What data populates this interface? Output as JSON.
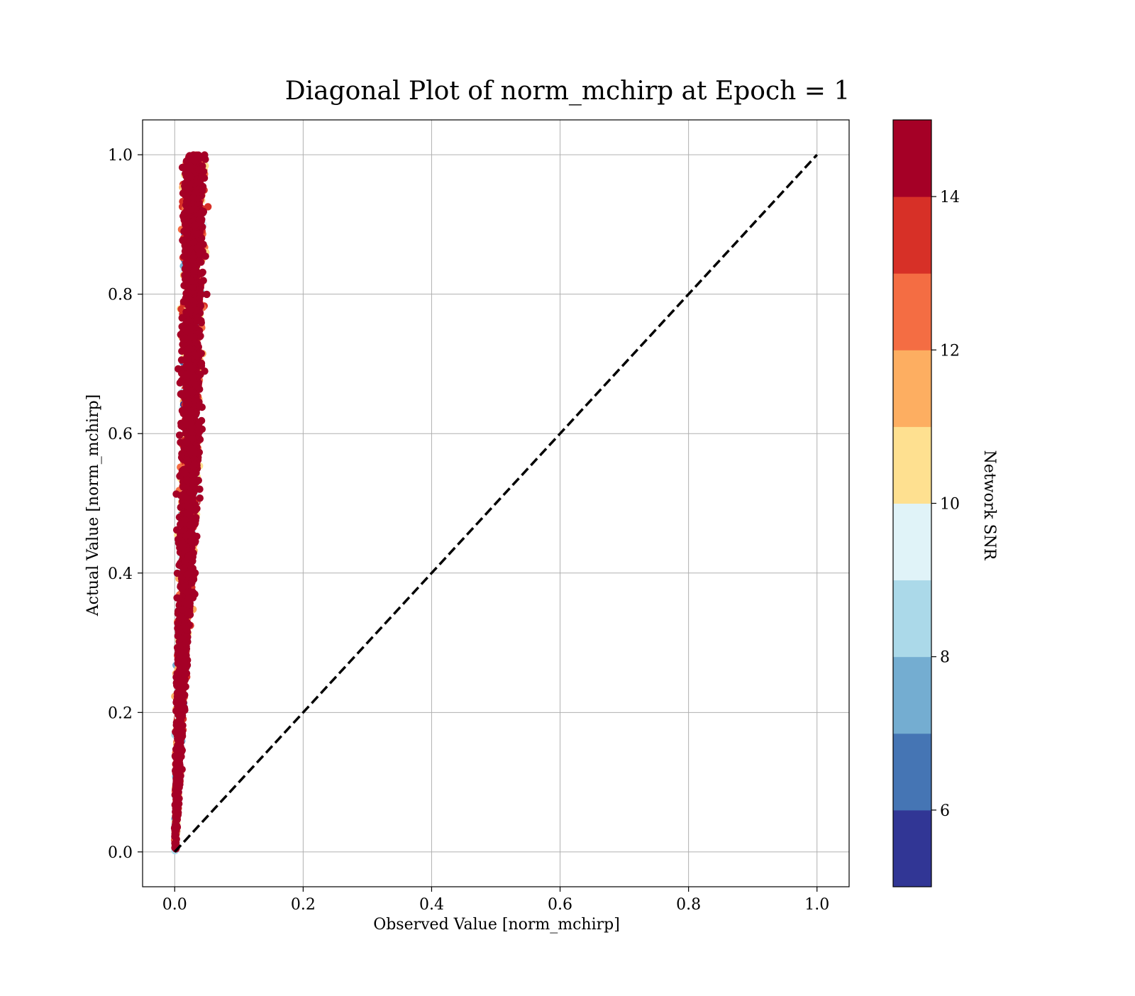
{
  "chart_data": {
    "type": "scatter",
    "title": "Diagonal Plot of norm_mchirp at Epoch = 1",
    "xlabel": "Observed Value [norm_mchirp]",
    "ylabel": "Actual Value [norm_mchirp]",
    "xlim": [
      -0.05,
      1.05
    ],
    "ylim": [
      -0.05,
      1.05
    ],
    "xticks": [
      "0.0",
      "0.2",
      "0.4",
      "0.6",
      "0.8",
      "1.0"
    ],
    "yticks": [
      "0.0",
      "0.2",
      "0.4",
      "0.6",
      "0.8",
      "1.0"
    ],
    "grid": true,
    "reference_line": {
      "x": [
        0.0,
        1.0
      ],
      "y": [
        0.0,
        1.0
      ],
      "style": "dashed",
      "color": "#000000"
    },
    "colorbar": {
      "label": "Network SNR",
      "range": [
        5,
        15
      ],
      "ticks": [
        "6",
        "8",
        "10",
        "12",
        "14"
      ],
      "colors": [
        "#313695",
        "#4575b4",
        "#74add1",
        "#abd9e9",
        "#e0f3f8",
        "#fee090",
        "#fdae61",
        "#f46d43",
        "#d73027",
        "#a50026"
      ]
    },
    "scatter_cloud": {
      "description_of_distribution": "",
      "x_center_at_y": [
        [
          0.0,
          0.001
        ],
        [
          0.2,
          0.008
        ],
        [
          0.4,
          0.018
        ],
        [
          0.6,
          0.025
        ],
        [
          0.8,
          0.028
        ],
        [
          1.0,
          0.03
        ]
      ],
      "x_spread_at_y": [
        [
          0.0,
          0.002
        ],
        [
          0.2,
          0.012
        ],
        [
          0.4,
          0.02
        ],
        [
          0.6,
          0.024
        ],
        [
          0.8,
          0.026
        ],
        [
          1.0,
          0.028
        ]
      ],
      "y_range": [
        0.0,
        1.0
      ]
    }
  }
}
